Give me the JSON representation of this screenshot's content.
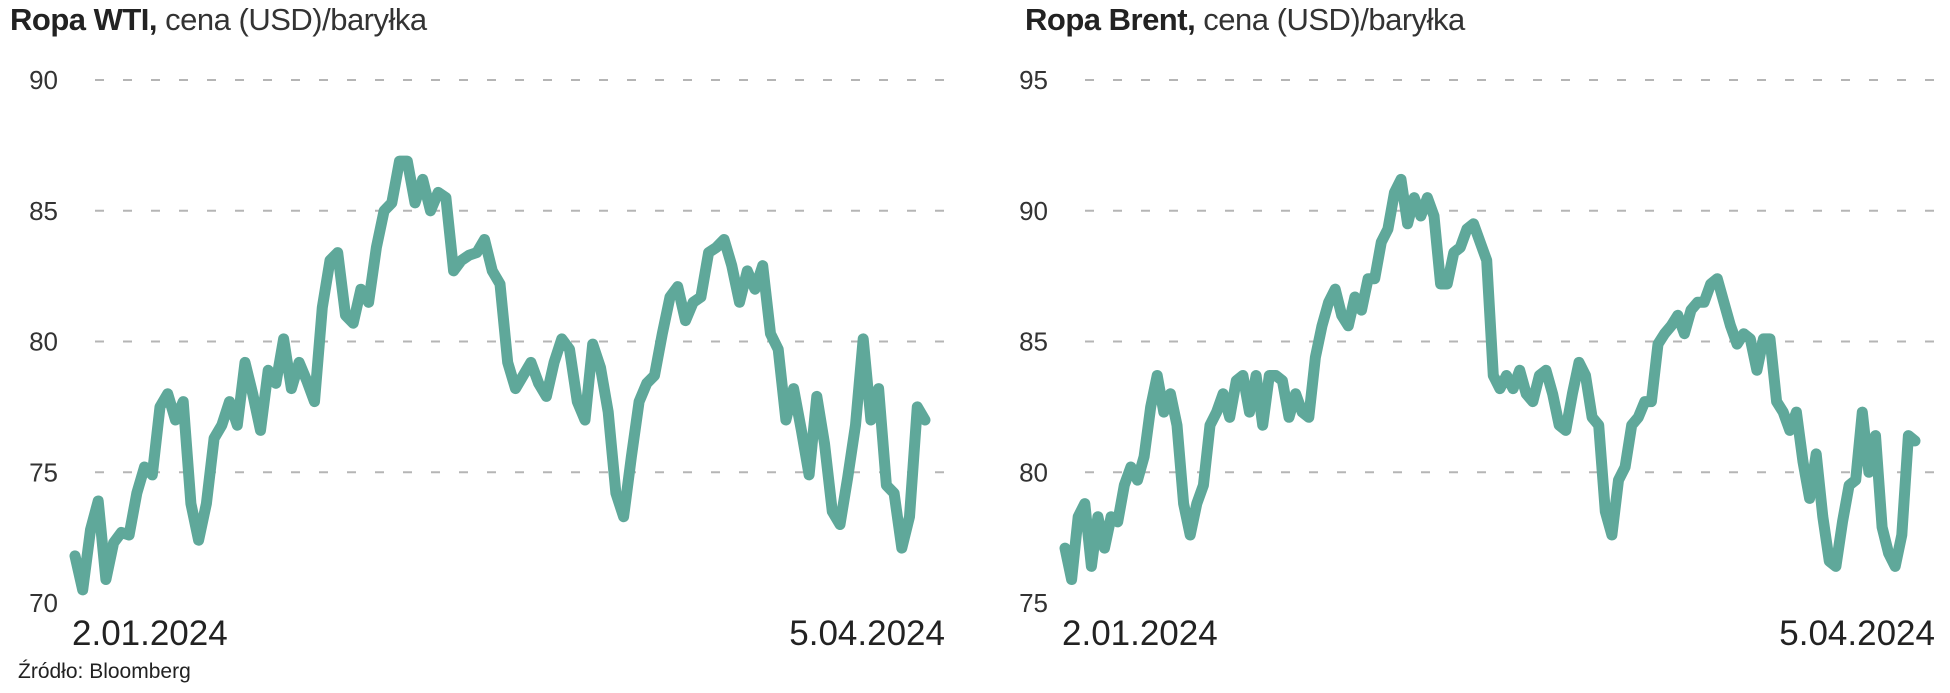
{
  "source": "Źródło: Bloomberg",
  "colors": {
    "line": "#5fa89a",
    "grid": "#b5b5b5",
    "text": "#222222"
  },
  "chart_data": [
    {
      "type": "line",
      "title_bold": "Ropa WTI,",
      "title_rest": " cena (USD)/baryłka",
      "xlabel": "",
      "ylabel": "",
      "ylim": [
        70,
        90
      ],
      "yticks": [
        90,
        85,
        80,
        75,
        70
      ],
      "x_start_label": "2.01.2024",
      "x_end_label": "5.04.2024",
      "grid": true,
      "values": [
        71.8,
        70.5,
        72.8,
        73.9,
        70.9,
        72.3,
        72.7,
        72.6,
        74.2,
        75.2,
        74.9,
        77.5,
        78.0,
        77.0,
        77.7,
        73.8,
        72.4,
        73.8,
        76.3,
        76.8,
        77.7,
        76.8,
        79.2,
        78.0,
        76.6,
        78.9,
        78.4,
        80.1,
        78.2,
        79.2,
        78.5,
        77.7,
        81.3,
        83.1,
        83.4,
        81.0,
        80.7,
        82.0,
        81.5,
        83.6,
        85.0,
        85.3,
        86.9,
        86.9,
        85.3,
        86.2,
        85.0,
        85.7,
        85.5,
        82.7,
        83.1,
        83.3,
        83.4,
        83.9,
        82.7,
        82.2,
        79.2,
        78.2,
        78.7,
        79.2,
        78.4,
        77.9,
        79.2,
        80.1,
        79.7,
        77.7,
        77.0,
        79.9,
        79.0,
        77.3,
        74.2,
        73.3,
        75.6,
        77.7,
        78.4,
        78.7,
        80.3,
        81.7,
        82.1,
        80.8,
        81.5,
        81.7,
        83.4,
        83.6,
        83.9,
        82.9,
        81.5,
        82.7,
        82.0,
        82.9,
        80.3,
        79.7,
        77.0,
        78.2,
        76.6,
        74.9,
        77.9,
        76.1,
        73.5,
        73.0,
        74.8,
        76.8,
        80.1,
        77.0,
        78.2,
        74.5,
        74.2,
        72.1,
        73.3,
        77.5,
        77.0
      ]
    },
    {
      "type": "line",
      "title_bold": "Ropa Brent,",
      "title_rest": " cena (USD)/baryłka",
      "xlabel": "",
      "ylabel": "",
      "ylim": [
        75,
        95
      ],
      "yticks": [
        95,
        90,
        85,
        80,
        75
      ],
      "x_start_label": "2.01.2024",
      "x_end_label": "5.04.2024",
      "grid": true,
      "values": [
        77.1,
        75.9,
        78.3,
        78.8,
        76.4,
        78.3,
        77.1,
        78.3,
        78.1,
        79.5,
        80.2,
        79.7,
        80.6,
        82.5,
        83.7,
        82.3,
        83.0,
        81.8,
        78.8,
        77.6,
        78.8,
        79.5,
        81.8,
        82.3,
        83.0,
        82.1,
        83.5,
        83.7,
        82.3,
        83.7,
        81.8,
        83.7,
        83.7,
        83.5,
        82.1,
        83.0,
        82.3,
        82.1,
        84.4,
        85.6,
        86.5,
        87.0,
        86.0,
        85.6,
        86.7,
        86.2,
        87.4,
        87.4,
        88.8,
        89.3,
        90.7,
        91.2,
        89.5,
        90.5,
        89.8,
        90.5,
        89.8,
        87.2,
        87.2,
        88.4,
        88.6,
        89.3,
        89.5,
        88.8,
        88.1,
        83.7,
        83.2,
        83.7,
        83.2,
        83.9,
        83.0,
        82.7,
        83.7,
        83.9,
        83.0,
        81.8,
        81.6,
        83.0,
        84.2,
        83.7,
        82.1,
        81.8,
        78.5,
        77.6,
        79.7,
        80.2,
        81.8,
        82.1,
        82.7,
        82.7,
        84.9,
        85.3,
        85.6,
        86.0,
        85.3,
        86.2,
        86.5,
        86.5,
        87.2,
        87.4,
        86.5,
        85.6,
        84.9,
        85.3,
        85.1,
        83.9,
        85.1,
        85.1,
        82.7,
        82.3,
        81.6,
        82.3,
        80.4,
        79.0,
        80.7,
        78.3,
        76.6,
        76.4,
        78.1,
        79.5,
        79.7,
        82.3,
        80.0,
        81.4,
        77.9,
        76.9,
        76.4,
        77.6,
        81.4,
        81.2
      ]
    }
  ]
}
